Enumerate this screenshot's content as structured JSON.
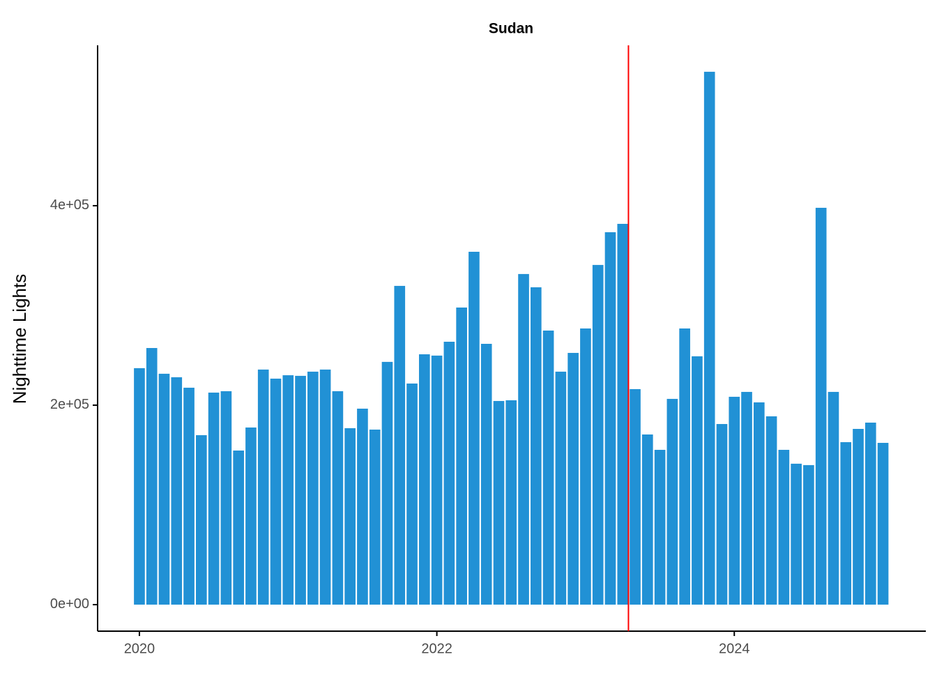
{
  "chart_data": {
    "type": "bar",
    "title": "Sudan",
    "y_label": "Nighttime Lights",
    "x": [
      "2020-01",
      "2020-02",
      "2020-03",
      "2020-04",
      "2020-05",
      "2020-06",
      "2020-07",
      "2020-08",
      "2020-09",
      "2020-10",
      "2020-11",
      "2020-12",
      "2021-01",
      "2021-02",
      "2021-03",
      "2021-04",
      "2021-05",
      "2021-06",
      "2021-07",
      "2021-08",
      "2021-09",
      "2021-10",
      "2021-11",
      "2021-12",
      "2022-01",
      "2022-02",
      "2022-03",
      "2022-04",
      "2022-05",
      "2022-06",
      "2022-07",
      "2022-08",
      "2022-09",
      "2022-10",
      "2022-11",
      "2022-12",
      "2023-01",
      "2023-02",
      "2023-03",
      "2023-04",
      "2023-05",
      "2023-06",
      "2023-07",
      "2023-08",
      "2023-09",
      "2023-10",
      "2023-11",
      "2023-12",
      "2024-01",
      "2024-02",
      "2024-03",
      "2024-04",
      "2024-05",
      "2024-06",
      "2024-07",
      "2024-08",
      "2024-09",
      "2024-10",
      "2024-11",
      "2024-12",
      "2025-01"
    ],
    "values": [
      237100,
      257300,
      231500,
      228000,
      217500,
      169900,
      212600,
      214000,
      154500,
      177600,
      235700,
      226600,
      230000,
      229400,
      233600,
      235700,
      214000,
      176900,
      196500,
      175500,
      243400,
      319600,
      221700,
      251000,
      249700,
      263600,
      297900,
      353800,
      261500,
      204200,
      204900,
      331500,
      318200,
      274800,
      233600,
      252400,
      276900,
      340600,
      373400,
      381800,
      216100,
      170600,
      155200,
      206300,
      276900,
      249000,
      534300,
      181100,
      208400,
      213300,
      202800,
      188800,
      155200,
      141300,
      139900,
      397900,
      213300,
      162900,
      176200,
      182500,
      162200
    ],
    "color": "#2191d5",
    "vline": "2023-04-15",
    "vline_color": "#ff0000",
    "xlim": [
      2019.719,
      2025.288
    ],
    "xticks": [
      2020,
      2022,
      2024
    ],
    "ylim": [
      -26600,
      560800
    ],
    "yticks": [
      {
        "value": 0,
        "label": "0e+00"
      },
      {
        "value": 200000,
        "label": "2e+05"
      },
      {
        "value": 400000,
        "label": "4e+05"
      }
    ]
  }
}
